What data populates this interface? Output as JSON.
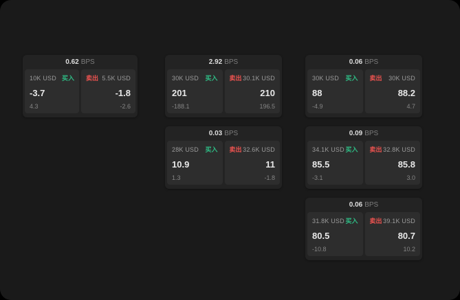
{
  "colors": {
    "buy": "#2ebd85",
    "sell": "#ef5350"
  },
  "cards": [
    {
      "bps": "0.62",
      "bps_unit": "BPS",
      "buy": {
        "size": "10K USD",
        "label": "买入",
        "price": "-3.7",
        "delta": "4.3"
      },
      "sell": {
        "size": "5.5K USD",
        "label": "卖出",
        "price": "-1.8",
        "delta": "-2.6"
      }
    },
    {
      "bps": "2.92",
      "bps_unit": "BPS",
      "buy": {
        "size": "30K USD",
        "label": "买入",
        "price": "201",
        "delta": "-188.1"
      },
      "sell": {
        "size": "30.1K USD",
        "label": "卖出",
        "price": "210",
        "delta": "196.5"
      }
    },
    {
      "bps": "0.06",
      "bps_unit": "BPS",
      "buy": {
        "size": "30K USD",
        "label": "买入",
        "price": "88",
        "delta": "-4.9"
      },
      "sell": {
        "size": "30K USD",
        "label": "卖出",
        "price": "88.2",
        "delta": "4.7"
      }
    },
    {
      "bps": "0.03",
      "bps_unit": "BPS",
      "buy": {
        "size": "28K USD",
        "label": "买入",
        "price": "10.9",
        "delta": "1.3"
      },
      "sell": {
        "size": "32.6K USD",
        "label": "卖出",
        "price": "11",
        "delta": "-1.8"
      }
    },
    {
      "bps": "0.09",
      "bps_unit": "BPS",
      "buy": {
        "size": "34.1K USD",
        "label": "买入",
        "price": "85.5",
        "delta": "-3.1"
      },
      "sell": {
        "size": "32.8K USD",
        "label": "卖出",
        "price": "85.8",
        "delta": "3.0"
      }
    },
    {
      "bps": "0.06",
      "bps_unit": "BPS",
      "buy": {
        "size": "31.8K USD",
        "label": "买入",
        "price": "80.5",
        "delta": "-10.8"
      },
      "sell": {
        "size": "39.1K USD",
        "label": "卖出",
        "price": "80.7",
        "delta": "10.2"
      }
    }
  ]
}
